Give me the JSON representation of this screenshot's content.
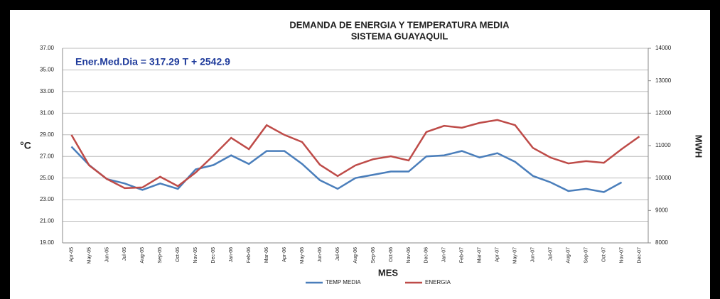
{
  "chart_data": {
    "type": "line",
    "title": "DEMANDA DE ENERGIA Y TEMPERATURA MEDIA",
    "subtitle": "SISTEMA GUAYAQUIL",
    "annotation": "Ener.Med.Dia = 317.29 T + 2542.9",
    "x_label": "MES",
    "y_label": "°C",
    "y2_label": "MWH",
    "categories": [
      "Apr-05",
      "May-05",
      "Jun-05",
      "Jul-05",
      "Aug-05",
      "Sep-05",
      "Oct-05",
      "Nov-05",
      "Dec-05",
      "Jan-06",
      "Feb-06",
      "Mar-06",
      "Apr-06",
      "May-06",
      "Jun-06",
      "Jul-06",
      "Aug-06",
      "Sep-06",
      "Oct-06",
      "Nov-06",
      "Dec-06",
      "Jan-07",
      "Feb-07",
      "Mar-07",
      "Apr-07",
      "May-07",
      "Jun-07",
      "Jul-07",
      "Aug-07",
      "Sep-07",
      "Oct-07",
      "Nov-07",
      "Dec-07"
    ],
    "series": [
      {
        "name": "TEMP MEDIA",
        "color": "#4a7ebb",
        "axis": "y",
        "values": [
          27.9,
          26.2,
          24.9,
          24.5,
          23.9,
          24.5,
          24.0,
          25.8,
          26.2,
          27.1,
          26.3,
          27.5,
          27.5,
          26.3,
          24.8,
          24.0,
          25.0,
          25.3,
          25.6,
          25.6,
          27.0,
          27.1,
          27.5,
          26.9,
          27.3,
          26.5,
          25.2,
          24.6,
          23.8,
          24.0,
          23.7,
          24.6,
          null
        ]
      },
      {
        "name": "ENERGIA",
        "color": "#be4b48",
        "axis": "y2",
        "values": [
          11330,
          10390,
          9970,
          9690,
          9710,
          10040,
          9750,
          10170,
          10690,
          11240,
          10890,
          11630,
          11330,
          11110,
          10410,
          10060,
          10390,
          10580,
          10670,
          10540,
          11420,
          11610,
          11550,
          11700,
          11790,
          11630,
          10930,
          10630,
          10450,
          10520,
          10470,
          10890,
          11280
        ]
      }
    ],
    "ylim": [
      19,
      37
    ],
    "yticks": [
      {
        "value": 19,
        "label": "19.00"
      },
      {
        "value": 21,
        "label": "21.00"
      },
      {
        "value": 23,
        "label": "23.00"
      },
      {
        "value": 25,
        "label": "25.00"
      },
      {
        "value": 27,
        "label": "27.00"
      },
      {
        "value": 29,
        "label": "29.00"
      },
      {
        "value": 31,
        "label": "31.00"
      },
      {
        "value": 33,
        "label": "33.00"
      },
      {
        "value": 35,
        "label": "35.00"
      },
      {
        "value": 37,
        "label": "37.00"
      }
    ],
    "y2lim": [
      8000,
      14000
    ],
    "y2ticks": [
      8000,
      9000,
      10000,
      11000,
      12000,
      13000,
      14000
    ],
    "grid": true,
    "legend": "bottom"
  }
}
